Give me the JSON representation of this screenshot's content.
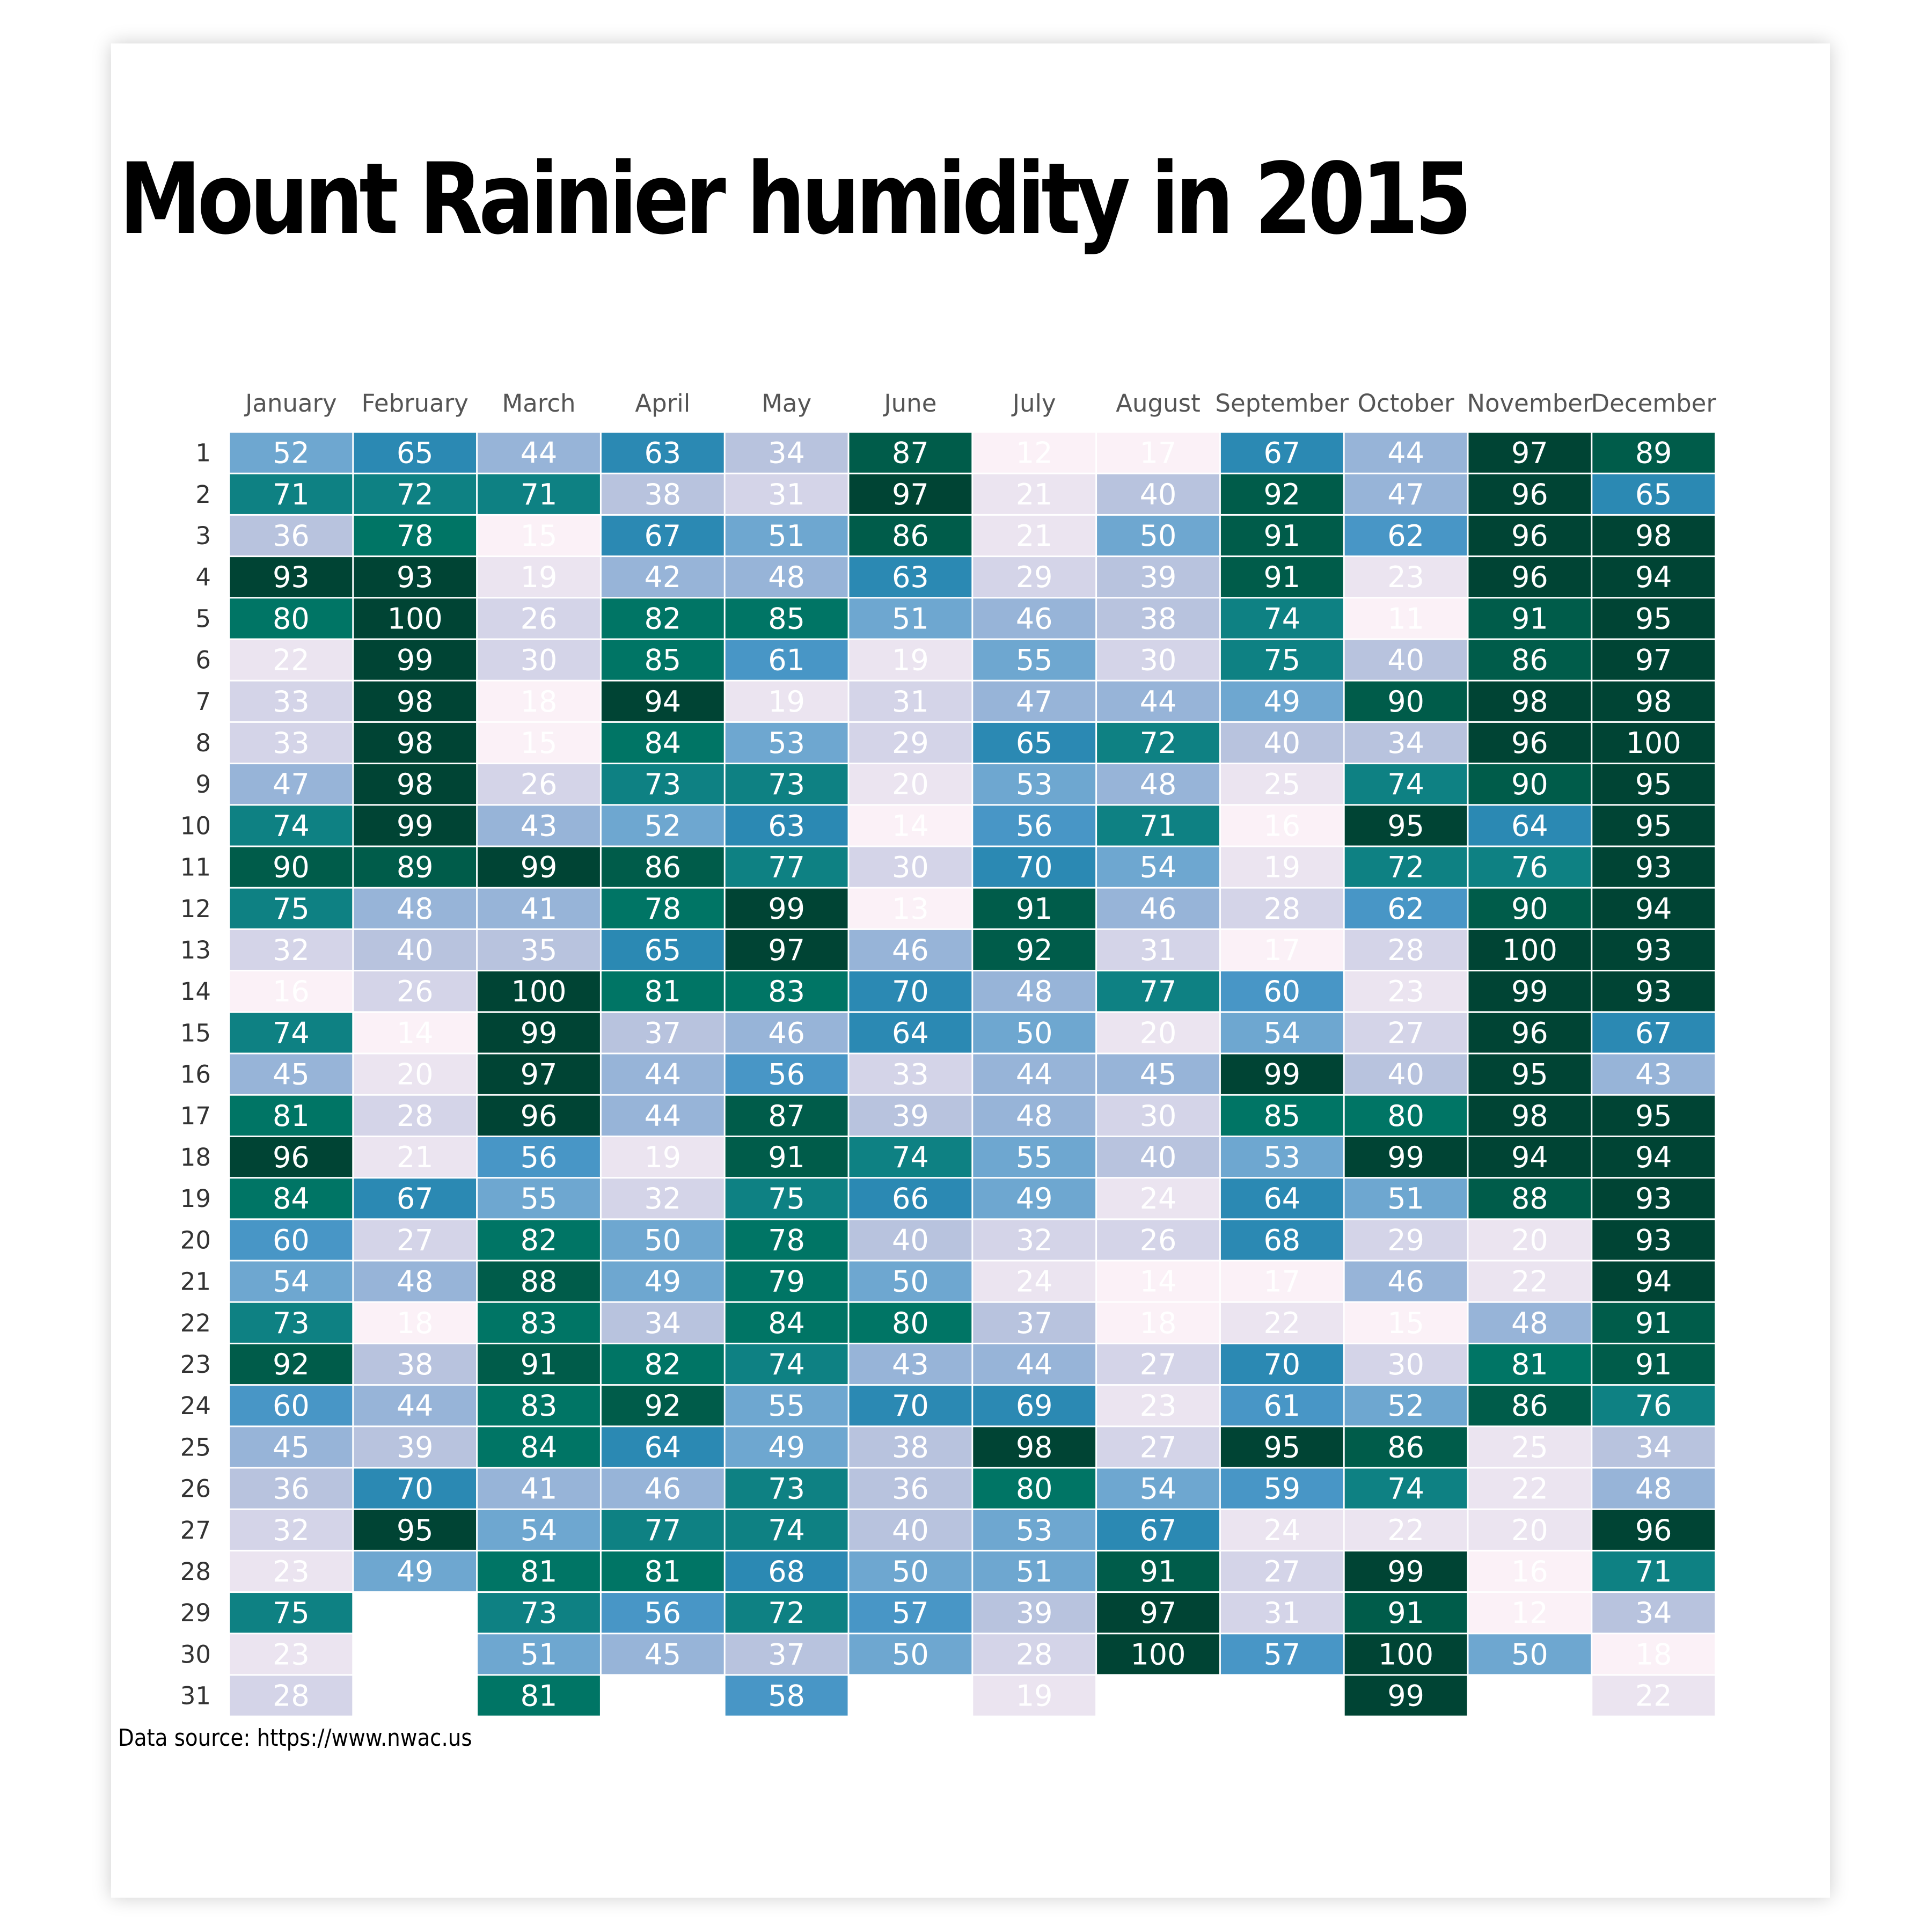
{
  "chart_data": {
    "type": "heatmap",
    "title": "Mount Rainier humidity in 2015",
    "source": "Data source: https://www.nwac.us",
    "months": [
      "January",
      "February",
      "March",
      "April",
      "May",
      "June",
      "July",
      "August",
      "September",
      "October",
      "November",
      "December"
    ],
    "days": [
      "1",
      "2",
      "3",
      "4",
      "5",
      "6",
      "7",
      "8",
      "9",
      "10",
      "11",
      "12",
      "13",
      "14",
      "15",
      "16",
      "17",
      "18",
      "19",
      "20",
      "21",
      "22",
      "23",
      "24",
      "25",
      "26",
      "27",
      "28",
      "29",
      "30",
      "31"
    ],
    "values": [
      [
        52,
        71,
        36,
        93,
        80,
        22,
        33,
        33,
        47,
        74,
        90,
        75,
        32,
        16,
        74,
        45,
        81,
        96,
        84,
        60,
        54,
        73,
        92,
        60,
        45,
        36,
        32,
        23,
        75,
        23,
        28
      ],
      [
        65,
        72,
        78,
        93,
        100,
        99,
        98,
        98,
        98,
        99,
        89,
        48,
        40,
        26,
        14,
        20,
        28,
        21,
        67,
        27,
        48,
        18,
        38,
        44,
        39,
        70,
        95,
        49
      ],
      [
        44,
        71,
        15,
        19,
        26,
        30,
        18,
        15,
        26,
        43,
        99,
        41,
        35,
        100,
        99,
        97,
        96,
        56,
        55,
        82,
        88,
        83,
        91,
        83,
        84,
        41,
        54,
        81,
        73,
        51,
        81
      ],
      [
        63,
        38,
        67,
        42,
        82,
        85,
        94,
        84,
        73,
        52,
        86,
        78,
        65,
        81,
        37,
        44,
        44,
        19,
        32,
        50,
        49,
        34,
        82,
        92,
        64,
        46,
        77,
        81,
        56,
        45
      ],
      [
        34,
        31,
        51,
        48,
        85,
        61,
        19,
        53,
        73,
        63,
        77,
        99,
        97,
        83,
        46,
        56,
        87,
        91,
        75,
        78,
        79,
        84,
        74,
        55,
        49,
        73,
        74,
        68,
        72,
        37,
        58
      ],
      [
        87,
        97,
        86,
        63,
        51,
        19,
        31,
        29,
        20,
        14,
        30,
        13,
        46,
        70,
        64,
        33,
        39,
        74,
        66,
        40,
        50,
        80,
        43,
        70,
        38,
        36,
        40,
        50,
        57,
        50
      ],
      [
        12,
        21,
        21,
        29,
        46,
        55,
        47,
        65,
        53,
        56,
        70,
        91,
        92,
        48,
        50,
        44,
        48,
        55,
        49,
        32,
        24,
        37,
        44,
        69,
        98,
        80,
        53,
        51,
        39,
        28,
        19
      ],
      [
        17,
        40,
        50,
        39,
        38,
        30,
        44,
        72,
        48,
        71,
        54,
        46,
        31,
        77,
        20,
        45,
        30,
        40,
        24,
        26,
        14,
        18,
        27,
        23,
        27,
        54,
        67,
        91,
        97,
        100
      ],
      [
        67,
        92,
        91,
        91,
        74,
        75,
        49,
        40,
        25,
        16,
        19,
        28,
        17,
        60,
        54,
        99,
        85,
        53,
        64,
        68,
        17,
        22,
        70,
        61,
        95,
        59,
        24,
        27,
        31,
        57
      ],
      [
        44,
        47,
        62,
        23,
        11,
        40,
        90,
        34,
        74,
        95,
        72,
        62,
        28,
        23,
        27,
        40,
        80,
        99,
        51,
        29,
        46,
        15,
        30,
        52,
        86,
        74,
        22,
        99,
        91,
        100,
        99
      ],
      [
        97,
        96,
        96,
        96,
        91,
        86,
        98,
        96,
        90,
        64,
        76,
        90,
        100,
        99,
        96,
        95,
        98,
        94,
        88,
        20,
        22,
        48,
        81,
        86,
        25,
        22,
        20,
        16,
        12,
        50
      ],
      [
        89,
        65,
        98,
        94,
        95,
        97,
        98,
        100,
        95,
        95,
        93,
        94,
        93,
        93,
        67,
        43,
        95,
        94,
        93,
        93,
        94,
        91,
        91,
        76,
        34,
        48,
        96,
        71,
        34,
        18,
        22
      ]
    ],
    "value_range": [
      11,
      100
    ],
    "colors": [
      "#fbf1f7",
      "#ebe4f0",
      "#d4d4e8",
      "#b8c3de",
      "#97b4d8",
      "#6ea7d0",
      "#4896c6",
      "#2b89b3",
      "#0e8183",
      "#007565",
      "#005c4a",
      "#004434"
    ],
    "legend": "none",
    "grid": false
  }
}
